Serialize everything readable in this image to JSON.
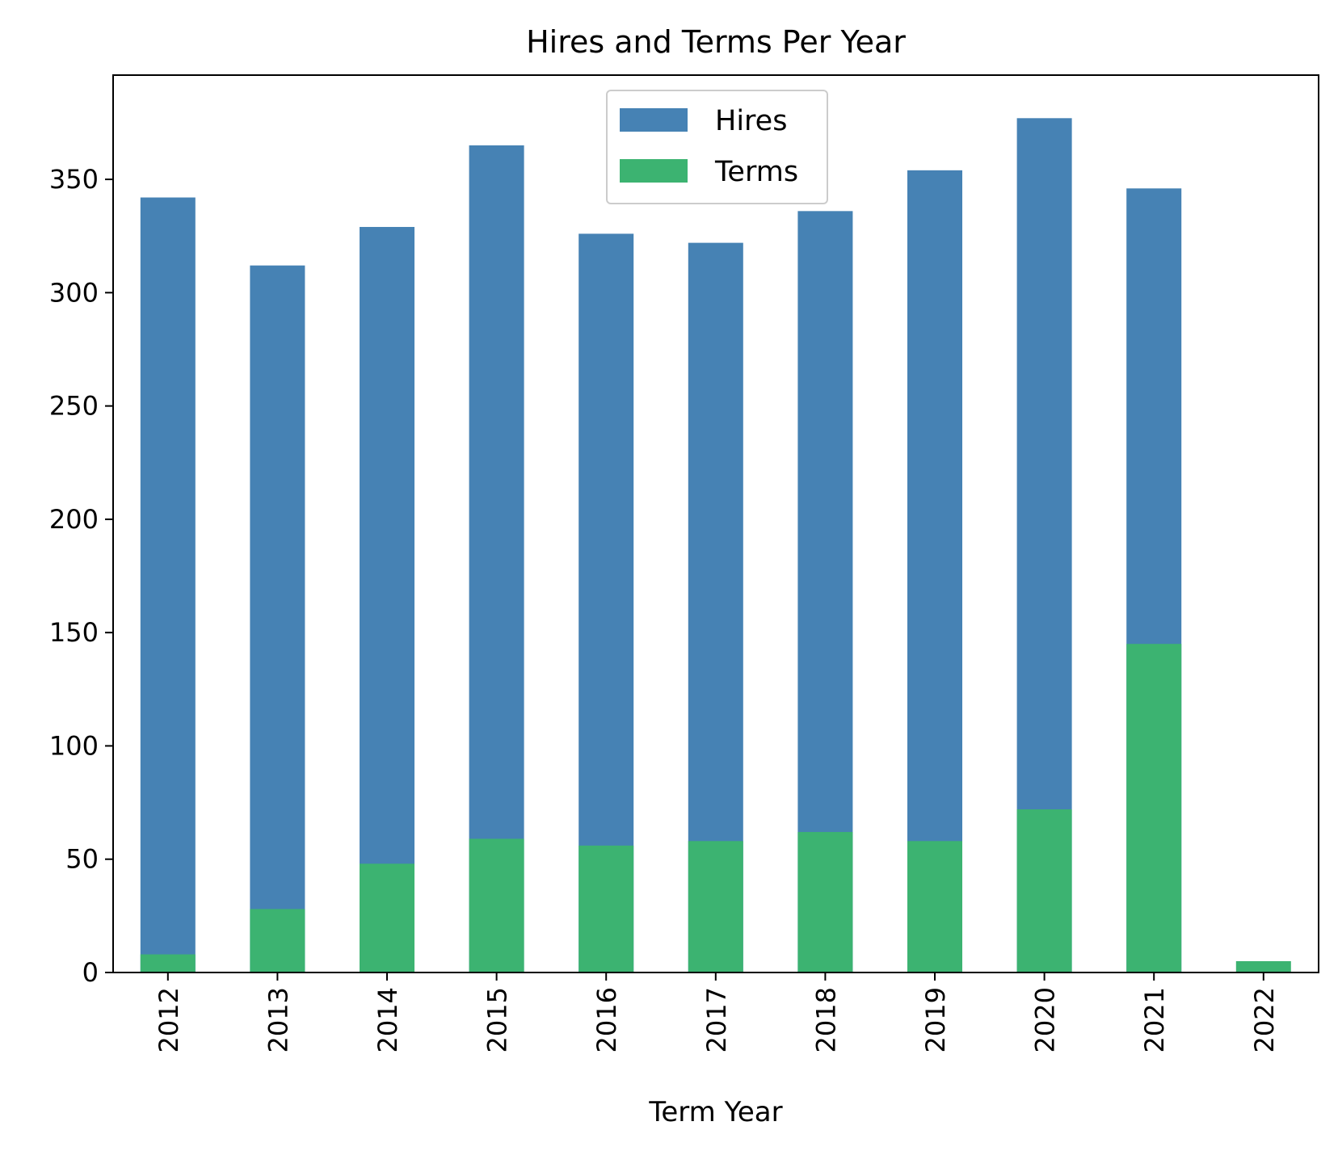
{
  "chart_data": {
    "type": "bar",
    "stacking": "overlay",
    "title": "Hires and Terms Per Year",
    "xlabel": "Term Year",
    "ylabel": "",
    "categories": [
      "2012",
      "2013",
      "2014",
      "2015",
      "2016",
      "2017",
      "2018",
      "2019",
      "2020",
      "2021",
      "2022"
    ],
    "series": [
      {
        "name": "Hires",
        "color": "#4682b4",
        "values": [
          342,
          312,
          329,
          365,
          326,
          322,
          336,
          354,
          377,
          346,
          0
        ]
      },
      {
        "name": "Terms",
        "color": "#3cb371",
        "values": [
          8,
          28,
          48,
          59,
          56,
          58,
          62,
          58,
          72,
          145,
          5
        ]
      }
    ],
    "ylim": [
      0,
      396
    ],
    "yticks": [
      0,
      50,
      100,
      150,
      200,
      250,
      300,
      350
    ],
    "x_tick_rotation": "vertical",
    "grid": false,
    "legend": "upper center"
  }
}
